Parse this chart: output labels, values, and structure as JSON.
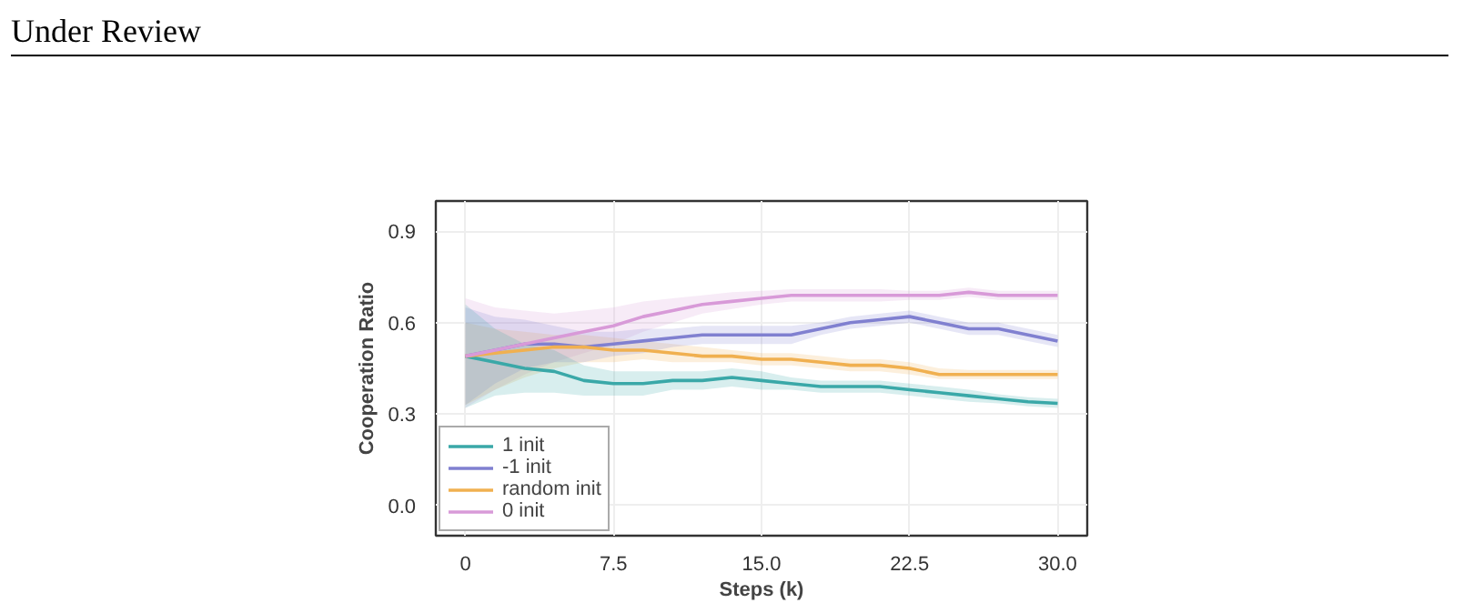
{
  "chart_data": {
    "type": "line",
    "xlabel": "Steps (k)",
    "ylabel": "Cooperation Ratio",
    "annotations": [
      "Under Review"
    ],
    "x": [
      0,
      1.5,
      3,
      4.5,
      6,
      7.5,
      9,
      10.5,
      12,
      13.5,
      15,
      16.5,
      18,
      19.5,
      21,
      22.5,
      24,
      25.5,
      27,
      28.5,
      30
    ],
    "series": [
      {
        "name": "1 init",
        "color": "#3aa8a8",
        "values": [
          0.49,
          0.47,
          0.45,
          0.44,
          0.41,
          0.4,
          0.4,
          0.41,
          0.41,
          0.42,
          0.41,
          0.4,
          0.39,
          0.39,
          0.39,
          0.38,
          0.37,
          0.36,
          0.35,
          0.34,
          0.335
        ],
        "lower": [
          0.32,
          0.36,
          0.37,
          0.37,
          0.36,
          0.36,
          0.36,
          0.38,
          0.38,
          0.39,
          0.38,
          0.38,
          0.37,
          0.37,
          0.37,
          0.36,
          0.35,
          0.34,
          0.335,
          0.325,
          0.32
        ],
        "upper": [
          0.66,
          0.58,
          0.53,
          0.51,
          0.46,
          0.44,
          0.44,
          0.44,
          0.44,
          0.45,
          0.44,
          0.42,
          0.41,
          0.41,
          0.41,
          0.4,
          0.39,
          0.38,
          0.365,
          0.355,
          0.35
        ]
      },
      {
        "name": "-1 init",
        "color": "#8080d0",
        "values": [
          0.49,
          0.51,
          0.53,
          0.53,
          0.52,
          0.53,
          0.54,
          0.55,
          0.56,
          0.56,
          0.56,
          0.56,
          0.58,
          0.6,
          0.61,
          0.62,
          0.6,
          0.58,
          0.58,
          0.56,
          0.54
        ],
        "lower": [
          0.33,
          0.4,
          0.45,
          0.47,
          0.47,
          0.49,
          0.5,
          0.52,
          0.53,
          0.53,
          0.53,
          0.53,
          0.56,
          0.58,
          0.59,
          0.6,
          0.58,
          0.56,
          0.56,
          0.54,
          0.52
        ],
        "upper": [
          0.65,
          0.62,
          0.61,
          0.59,
          0.57,
          0.57,
          0.58,
          0.58,
          0.59,
          0.59,
          0.59,
          0.59,
          0.6,
          0.62,
          0.63,
          0.64,
          0.62,
          0.6,
          0.6,
          0.58,
          0.56
        ]
      },
      {
        "name": "random init",
        "color": "#f0b050",
        "values": [
          0.49,
          0.5,
          0.51,
          0.52,
          0.52,
          0.51,
          0.51,
          0.5,
          0.49,
          0.49,
          0.48,
          0.48,
          0.47,
          0.46,
          0.46,
          0.45,
          0.43,
          0.43,
          0.43,
          0.43,
          0.43
        ],
        "lower": [
          0.33,
          0.38,
          0.42,
          0.45,
          0.47,
          0.47,
          0.48,
          0.47,
          0.47,
          0.47,
          0.46,
          0.46,
          0.45,
          0.44,
          0.44,
          0.43,
          0.415,
          0.415,
          0.415,
          0.415,
          0.415
        ],
        "upper": [
          0.6,
          0.58,
          0.57,
          0.56,
          0.56,
          0.55,
          0.54,
          0.53,
          0.52,
          0.51,
          0.5,
          0.5,
          0.49,
          0.48,
          0.48,
          0.47,
          0.45,
          0.445,
          0.445,
          0.445,
          0.445
        ]
      },
      {
        "name": "0 init",
        "color": "#d89ad8",
        "values": [
          0.49,
          0.51,
          0.53,
          0.55,
          0.57,
          0.59,
          0.62,
          0.64,
          0.66,
          0.67,
          0.68,
          0.69,
          0.69,
          0.69,
          0.69,
          0.69,
          0.69,
          0.7,
          0.69,
          0.69,
          0.69
        ],
        "lower": [
          0.32,
          0.38,
          0.43,
          0.47,
          0.5,
          0.53,
          0.57,
          0.6,
          0.63,
          0.645,
          0.66,
          0.67,
          0.67,
          0.67,
          0.67,
          0.675,
          0.675,
          0.685,
          0.675,
          0.675,
          0.675
        ],
        "upper": [
          0.68,
          0.65,
          0.64,
          0.63,
          0.64,
          0.65,
          0.67,
          0.68,
          0.69,
          0.7,
          0.705,
          0.71,
          0.71,
          0.71,
          0.71,
          0.705,
          0.705,
          0.715,
          0.705,
          0.705,
          0.705
        ]
      }
    ],
    "xlim": [
      -1.5,
      31.5
    ],
    "ylim": [
      -0.1,
      1.0
    ],
    "xticks": [
      {
        "value": 0,
        "label": "0"
      },
      7.5,
      {
        "value": 15,
        "label": "15.0"
      },
      22.5,
      {
        "value": 30,
        "label": "30.0"
      }
    ],
    "yticks": [
      {
        "value": 0,
        "label": "0.0"
      },
      0.3,
      0.6,
      0.9
    ],
    "grid": true,
    "legend": "bottom left",
    "marker": "none",
    "line_style": "solid"
  }
}
